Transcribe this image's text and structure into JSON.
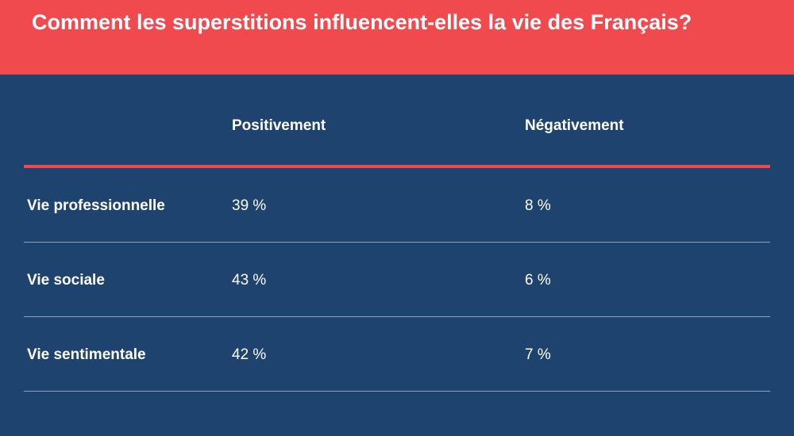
{
  "title": "Comment les superstitions influencent-elles la vie des Français?",
  "colors": {
    "header_background": "#f04a4f",
    "body_background": "#1f436f",
    "accent_rule": "#f04a4f",
    "row_rule": "#8aa0bd",
    "text": "#ffffff"
  },
  "chart_data": {
    "type": "table",
    "title": "Comment les superstitions influencent-elles la vie des Français?",
    "columns": [
      "Positivement",
      "Négativement"
    ],
    "rows": [
      {
        "label": "Vie professionnelle",
        "values": [
          "39 %",
          "8 %"
        ]
      },
      {
        "label": "Vie sociale",
        "values": [
          "43 %",
          "6 %"
        ]
      },
      {
        "label": "Vie sentimentale",
        "values": [
          "42 %",
          "7 %"
        ]
      }
    ]
  }
}
